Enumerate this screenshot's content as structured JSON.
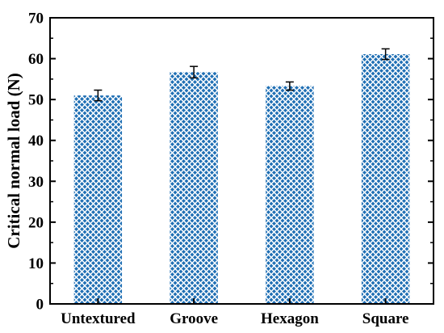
{
  "chart_data": {
    "type": "bar",
    "title": "",
    "xlabel": "",
    "ylabel": "Critical normal load (N)",
    "ylim": [
      0,
      70
    ],
    "yticks": [
      0,
      10,
      20,
      30,
      40,
      50,
      60,
      70
    ],
    "categories": [
      "Untextured",
      "Groove",
      "Hexagon",
      "Square"
    ],
    "values": [
      51.0,
      56.7,
      53.3,
      61.1
    ],
    "errors": [
      1.3,
      1.4,
      1.0,
      1.3
    ],
    "grid": false,
    "bar_fill": "crosshatch",
    "colors": {
      "bar": "#1f6fb4",
      "bar_background": "#ffffff",
      "axis": "#000000",
      "error_bar": "#000000"
    }
  }
}
